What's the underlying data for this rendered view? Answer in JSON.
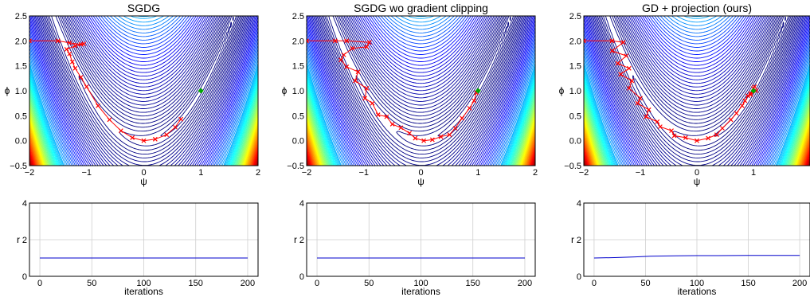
{
  "chart_data": [
    {
      "type": "contour",
      "title": "SGDG",
      "xlabel": "ψ",
      "ylabel": "ϕ",
      "xlim": [
        -2,
        2
      ],
      "ylim": [
        -0.5,
        2.5
      ],
      "xticks": [
        "−2",
        "−1",
        "0",
        "1",
        "2"
      ],
      "yticks": [
        "−0.5",
        "0.0",
        "0.5",
        "1.0",
        "1.5",
        "2.0",
        "2.5"
      ],
      "surface": "rosenbrock",
      "optimum": {
        "x": 1,
        "y": 1
      },
      "trajectory": {
        "color": "#ff0000",
        "points": [
          [
            -2.0,
            2.0
          ],
          [
            -1.5,
            2.0
          ],
          [
            -1.3,
            1.96
          ],
          [
            -1.1,
            1.93
          ],
          [
            -1.05,
            1.94
          ],
          [
            -1.2,
            1.9
          ],
          [
            -1.35,
            1.83
          ],
          [
            -1.3,
            1.74
          ],
          [
            -1.25,
            1.58
          ],
          [
            -1.2,
            1.45
          ],
          [
            -1.1,
            1.27
          ],
          [
            -1.0,
            1.08
          ],
          [
            -0.8,
            0.7
          ],
          [
            -0.6,
            0.42
          ],
          [
            -0.4,
            0.2
          ],
          [
            -0.2,
            0.06
          ],
          [
            0.0,
            0.0
          ],
          [
            0.2,
            0.03
          ],
          [
            0.4,
            0.12
          ],
          [
            0.55,
            0.27
          ],
          [
            0.65,
            0.43
          ]
        ]
      }
    },
    {
      "type": "contour",
      "title": "SGDG wo gradient clipping",
      "xlabel": "ψ",
      "ylabel": "ϕ",
      "xlim": [
        -2,
        2
      ],
      "ylim": [
        -0.5,
        2.5
      ],
      "xticks": [
        "−2",
        "−1",
        "0",
        "1",
        "2"
      ],
      "yticks": [
        "−0.5",
        "0.0",
        "0.5",
        "1.0",
        "1.5",
        "2.0",
        "2.5"
      ],
      "surface": "rosenbrock",
      "optimum": {
        "x": 1,
        "y": 1
      },
      "trajectory": {
        "color": "#ff0000",
        "points": [
          [
            -2.0,
            2.0
          ],
          [
            -1.5,
            2.0
          ],
          [
            -1.3,
            2.0
          ],
          [
            -0.9,
            1.97
          ],
          [
            -0.95,
            1.88
          ],
          [
            -1.2,
            1.85
          ],
          [
            -1.35,
            1.72
          ],
          [
            -1.4,
            1.62
          ],
          [
            -1.3,
            1.48
          ],
          [
            -1.1,
            1.38
          ],
          [
            -1.15,
            1.2
          ],
          [
            -0.95,
            1.05
          ],
          [
            -0.98,
            0.85
          ],
          [
            -0.85,
            0.75
          ],
          [
            -0.75,
            0.52
          ],
          [
            -0.6,
            0.48
          ],
          [
            -0.5,
            0.33
          ],
          [
            -0.35,
            0.26
          ],
          [
            -0.2,
            0.15
          ],
          [
            -0.1,
            0.05
          ],
          [
            0.05,
            0.0
          ],
          [
            0.2,
            0.02
          ],
          [
            0.35,
            0.08
          ],
          [
            0.5,
            0.12
          ],
          [
            0.6,
            0.25
          ],
          [
            0.72,
            0.45
          ],
          [
            0.85,
            0.65
          ],
          [
            0.93,
            0.8
          ],
          [
            0.97,
            0.96
          ]
        ]
      }
    },
    {
      "type": "contour",
      "title": "GD + projection (ours)",
      "xlabel": "ψ",
      "ylabel": "ϕ",
      "xlim": [
        -2,
        2
      ],
      "ylim": [
        -0.5,
        2.5
      ],
      "xticks": [
        "−2",
        "−1",
        "0",
        "1"
      ],
      "yticks": [
        "−0.5",
        "0.0",
        "0.5",
        "1.0",
        "1.5",
        "2.0",
        "2.5"
      ],
      "surface": "rosenbrock",
      "optimum": {
        "x": 1,
        "y": 1
      },
      "trajectory": {
        "color": "#ff0000",
        "points": [
          [
            -2.0,
            2.0
          ],
          [
            -1.5,
            2.0
          ],
          [
            -1.3,
            1.97
          ],
          [
            -1.5,
            1.8
          ],
          [
            -1.25,
            1.7
          ],
          [
            -1.4,
            1.55
          ],
          [
            -1.2,
            1.45
          ],
          [
            -1.35,
            1.33
          ],
          [
            -1.15,
            1.2
          ],
          [
            -1.2,
            1.05
          ],
          [
            -1.0,
            0.85
          ],
          [
            -1.05,
            0.75
          ],
          [
            -0.85,
            0.62
          ],
          [
            -0.9,
            0.48
          ],
          [
            -0.7,
            0.38
          ],
          [
            -0.65,
            0.28
          ],
          [
            -0.45,
            0.2
          ],
          [
            -0.4,
            0.1
          ],
          [
            -0.2,
            0.06
          ],
          [
            0.0,
            0.0
          ],
          [
            0.2,
            0.05
          ],
          [
            0.35,
            0.12
          ],
          [
            0.45,
            0.25
          ],
          [
            0.6,
            0.42
          ],
          [
            0.7,
            0.55
          ],
          [
            0.8,
            0.7
          ],
          [
            0.85,
            0.8
          ],
          [
            0.9,
            0.9
          ],
          [
            0.95,
            0.95
          ],
          [
            1.0,
            1.05
          ],
          [
            1.05,
            1.0
          ],
          [
            0.95,
            0.92
          ],
          [
            1.02,
            1.08
          ]
        ]
      }
    },
    {
      "type": "line",
      "xlabel": "iterations",
      "ylabel": "r",
      "xlim": [
        -10,
        210
      ],
      "ylim": [
        0,
        4
      ],
      "xticks": [
        0,
        50,
        100,
        150,
        200
      ],
      "yticks": [
        0,
        2,
        4
      ],
      "grid": true,
      "series": [
        {
          "x": [
            0,
            200
          ],
          "values": [
            1.0,
            1.0
          ],
          "color": "#0000cc"
        }
      ]
    },
    {
      "type": "line",
      "xlabel": "iterations",
      "ylabel": "r",
      "xlim": [
        -10,
        210
      ],
      "ylim": [
        0,
        4
      ],
      "xticks": [
        0,
        50,
        100,
        150,
        200
      ],
      "yticks": [
        0,
        2,
        4
      ],
      "grid": true,
      "series": [
        {
          "x": [
            0,
            200
          ],
          "values": [
            1.0,
            1.0
          ],
          "color": "#0000cc"
        }
      ]
    },
    {
      "type": "line",
      "xlabel": "iterations",
      "ylabel": "r",
      "xlim": [
        -10,
        210
      ],
      "ylim": [
        0,
        4
      ],
      "xticks": [
        0,
        50,
        100,
        150,
        200
      ],
      "yticks": [
        0,
        2,
        4
      ],
      "grid": true,
      "series": [
        {
          "x": [
            0,
            20,
            40,
            55,
            80,
            100,
            120,
            150,
            200
          ],
          "values": [
            1.0,
            1.02,
            1.06,
            1.1,
            1.12,
            1.13,
            1.13,
            1.14,
            1.14
          ],
          "color": "#0000cc"
        }
      ]
    }
  ]
}
